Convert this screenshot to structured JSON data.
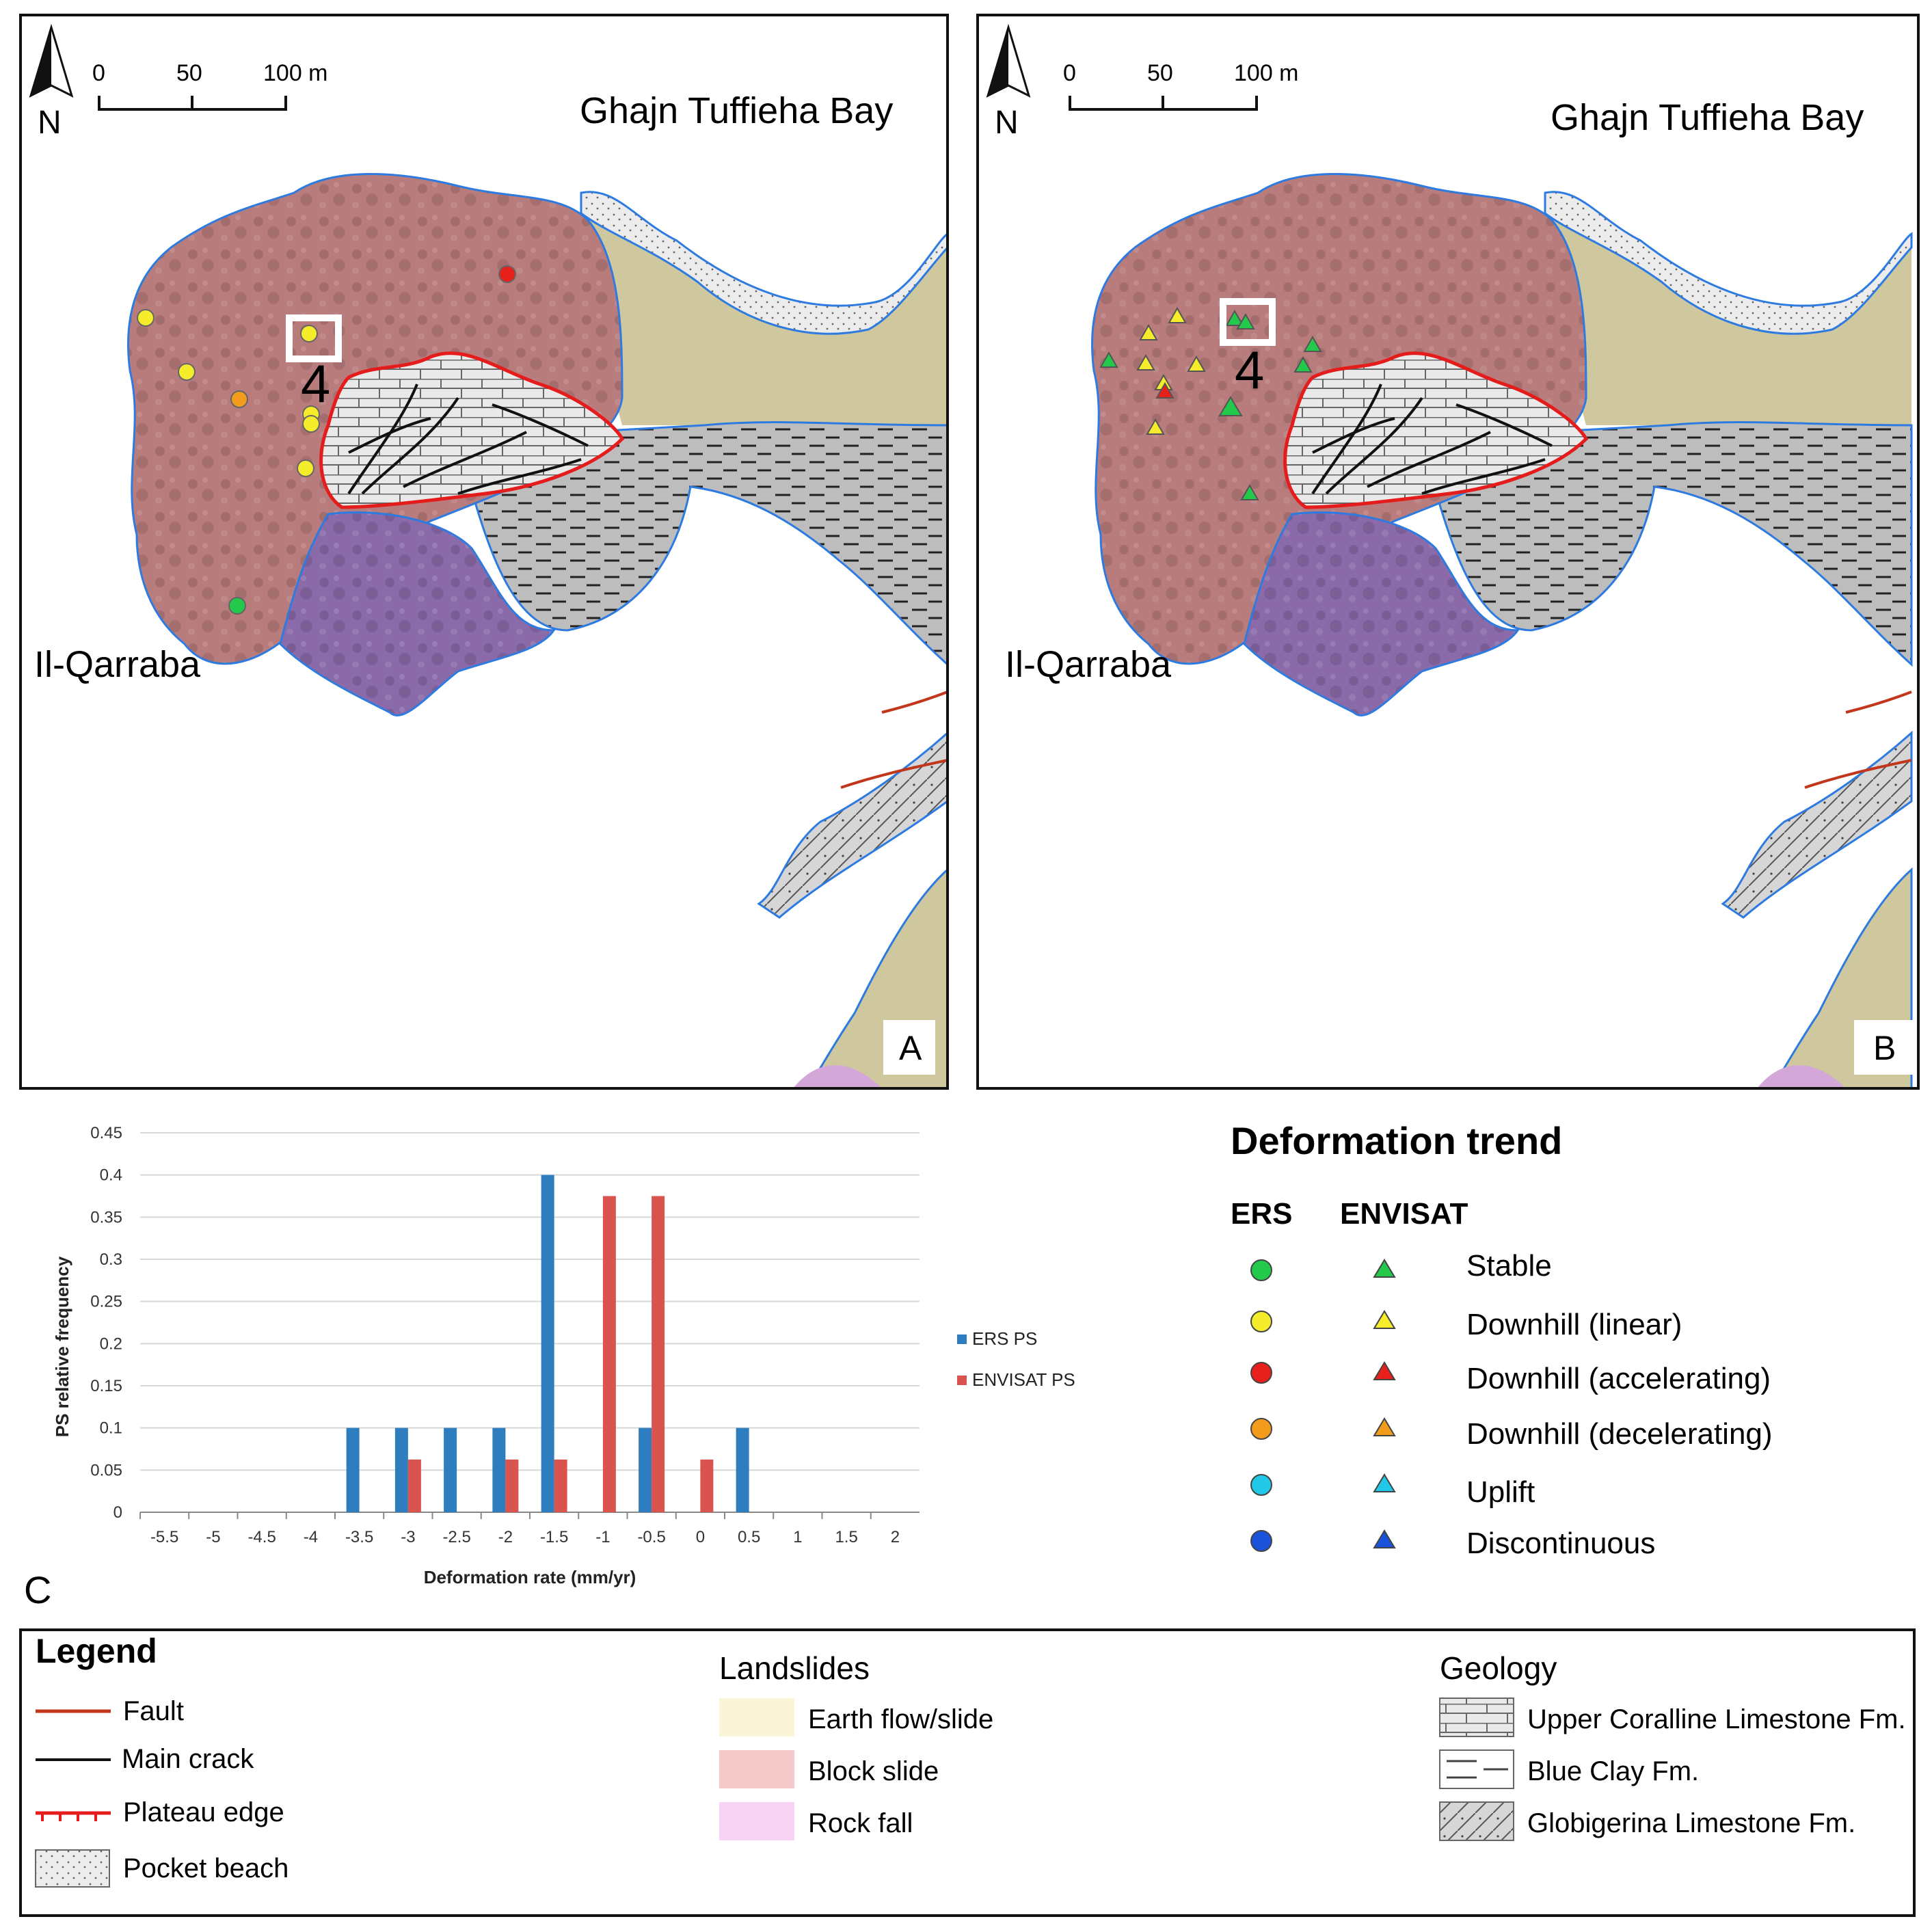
{
  "map_a": {
    "panel_label": "A",
    "bay_label": "Ghajn Tuffieha Bay",
    "headland_label": "Il-Qarraba",
    "crack_label": "4",
    "north_label": "N",
    "scale_ticks": [
      "0",
      "50",
      "100 m"
    ]
  },
  "map_b": {
    "panel_label": "B",
    "bay_label": "Ghajn Tuffieha Bay",
    "headland_label": "Il-Qarraba",
    "crack_label": "4",
    "north_label": "N",
    "scale_ticks": [
      "0",
      "50",
      "100 m"
    ]
  },
  "panel_c_label": "C",
  "chart_data": {
    "type": "bar",
    "xlabel": "Deformation rate (mm/yr)",
    "ylabel": "PS relative frequency",
    "categories": [
      "-5.5",
      "-5",
      "-4.5",
      "-4",
      "-3.5",
      "-3",
      "-2.5",
      "-2",
      "-1.5",
      "-1",
      "-0.5",
      "0",
      "0.5",
      "1",
      "1.5",
      "2"
    ],
    "ylim": [
      0,
      0.45
    ],
    "yticks": [
      "0",
      "0.05",
      "0.1",
      "0.15",
      "0.2",
      "0.25",
      "0.3",
      "0.35",
      "0.4",
      "0.45"
    ],
    "grid": true,
    "legend_position": "right",
    "series": [
      {
        "name": "ERS PS",
        "color": "#2e7ebf",
        "values": [
          0,
          0,
          0,
          0,
          0.1,
          0.1,
          0.1,
          0.1,
          0.4,
          0,
          0.1,
          0,
          0.1,
          0,
          0,
          0
        ]
      },
      {
        "name": "ENVISAT PS",
        "color": "#d9534f",
        "values": [
          0,
          0,
          0,
          0,
          0,
          0.0625,
          0,
          0.0625,
          0.0625,
          0.375,
          0.375,
          0.0625,
          0,
          0,
          0,
          0
        ]
      }
    ]
  },
  "deformation_trend": {
    "title": "Deformation trend",
    "col_ers": "ERS",
    "col_envisat": "ENVISAT",
    "items": [
      {
        "label": "Stable",
        "color": "#22c94a"
      },
      {
        "label": "Downhill (linear)",
        "color": "#f5ec2c"
      },
      {
        "label": "Downhill (accelerating)",
        "color": "#e8201c"
      },
      {
        "label": "Downhill (decelerating)",
        "color": "#f39c1c"
      },
      {
        "label": "Uplift",
        "color": "#22c8e8"
      },
      {
        "label": "Discontinuous",
        "color": "#1a52d9"
      }
    ]
  },
  "legend": {
    "title": "Legend",
    "symbols": [
      {
        "label": "Fault",
        "color": "#c2361b"
      },
      {
        "label": "Main crack",
        "color": "#111111"
      },
      {
        "label": "Plateau edge",
        "color": "#e41c1c"
      },
      {
        "label": "Pocket beach",
        "color": "#e6e6e6"
      }
    ],
    "landslides_title": "Landslides",
    "landslides": [
      {
        "label": "Earth flow/slide",
        "color": "#fbf5d8"
      },
      {
        "label": "Block slide",
        "color": "#f6caca"
      },
      {
        "label": "Rock fall",
        "color": "#f8d2f3"
      }
    ],
    "geology_title": "Geology",
    "geology": [
      {
        "label": "Upper Coralline Limestone Fm."
      },
      {
        "label": "Blue Clay Fm."
      },
      {
        "label": "Globigerina Limestone Fm."
      }
    ]
  }
}
